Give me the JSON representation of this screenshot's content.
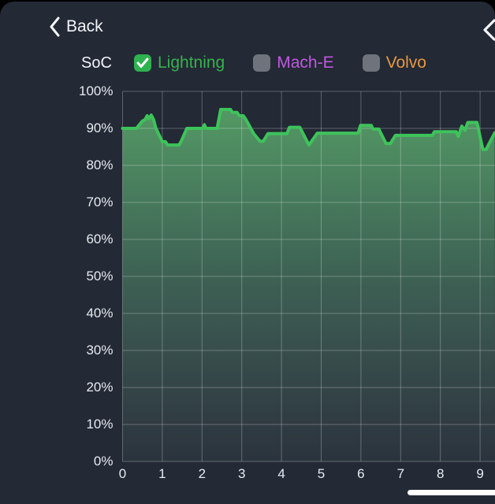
{
  "header": {
    "back_label": "Back"
  },
  "legend": {
    "axis_label": "SoC",
    "items": [
      {
        "label": "Lightning",
        "checked": true,
        "label_color": "#37b14e",
        "box_color": "#2eb24f"
      },
      {
        "label": "Mach-E",
        "checked": false,
        "label_color": "#c158e0",
        "box_color": "#6e737c"
      },
      {
        "label": "Volvo",
        "checked": false,
        "label_color": "#e8993f",
        "box_color": "#6e737c"
      }
    ]
  },
  "colors": {
    "surface": "#232935",
    "line_green": "#3ec35b",
    "grid": "rgba(255,255,255,0.27)",
    "area_top": "rgba(90,170,105,0.92)",
    "area_mid": "rgba(87,154,114,0.50)",
    "area_bottom": "rgba(106,143,128,0.10)",
    "tick_text": "#e7ebf1"
  },
  "chart_data": {
    "type": "area",
    "title": "SoC",
    "xlabel": "",
    "ylabel": "SoC",
    "xlim": [
      0,
      9.37
    ],
    "ylim": [
      0,
      100
    ],
    "grid": true,
    "x_ticks": [
      "0",
      "1",
      "2",
      "3",
      "4",
      "5",
      "6",
      "7",
      "8",
      "9"
    ],
    "y_ticks": [
      "0%",
      "10%",
      "20%",
      "30%",
      "40%",
      "50%",
      "60%",
      "70%",
      "80%",
      "90%",
      "100%"
    ],
    "series": [
      {
        "name": "Lightning",
        "visible": true,
        "points": [
          [
            0,
            90
          ],
          [
            0.35,
            90
          ],
          [
            0.5,
            92
          ],
          [
            0.56,
            92.3
          ],
          [
            0.62,
            93.4
          ],
          [
            0.66,
            92.6
          ],
          [
            0.72,
            93.6
          ],
          [
            0.78,
            92.4
          ],
          [
            0.84,
            90
          ],
          [
            1.0,
            86.4
          ],
          [
            1.08,
            86.4
          ],
          [
            1.13,
            85.5
          ],
          [
            1.42,
            85.5
          ],
          [
            1.47,
            86.4
          ],
          [
            1.62,
            90
          ],
          [
            2.02,
            90
          ],
          [
            2.06,
            91
          ],
          [
            2.1,
            90
          ],
          [
            2.38,
            90
          ],
          [
            2.47,
            95.1
          ],
          [
            2.72,
            95.1
          ],
          [
            2.76,
            94.3
          ],
          [
            2.88,
            94.3
          ],
          [
            2.94,
            93.4
          ],
          [
            3.04,
            93.4
          ],
          [
            3.1,
            92.5
          ],
          [
            3.3,
            88.6
          ],
          [
            3.46,
            86.5
          ],
          [
            3.54,
            86.5
          ],
          [
            3.66,
            88.6
          ],
          [
            4.14,
            88.6
          ],
          [
            4.2,
            90.3
          ],
          [
            4.46,
            90.3
          ],
          [
            4.69,
            85.5
          ],
          [
            4.9,
            88.7
          ],
          [
            5.93,
            88.7
          ],
          [
            5.99,
            90.8
          ],
          [
            6.26,
            90.8
          ],
          [
            6.3,
            89.8
          ],
          [
            6.45,
            89.8
          ],
          [
            6.63,
            85.9
          ],
          [
            6.74,
            85.9
          ],
          [
            6.87,
            88.1
          ],
          [
            7.8,
            88.1
          ],
          [
            7.85,
            89.1
          ],
          [
            8.4,
            89.1
          ],
          [
            8.45,
            87.8
          ],
          [
            8.54,
            90.6
          ],
          [
            8.62,
            89.5
          ],
          [
            8.69,
            91.6
          ],
          [
            8.92,
            91.6
          ],
          [
            9.07,
            84.3
          ],
          [
            9.15,
            84.3
          ],
          [
            9.37,
            88.8
          ]
        ]
      },
      {
        "name": "Mach-E",
        "visible": false,
        "points": []
      },
      {
        "name": "Volvo",
        "visible": false,
        "points": []
      }
    ]
  }
}
